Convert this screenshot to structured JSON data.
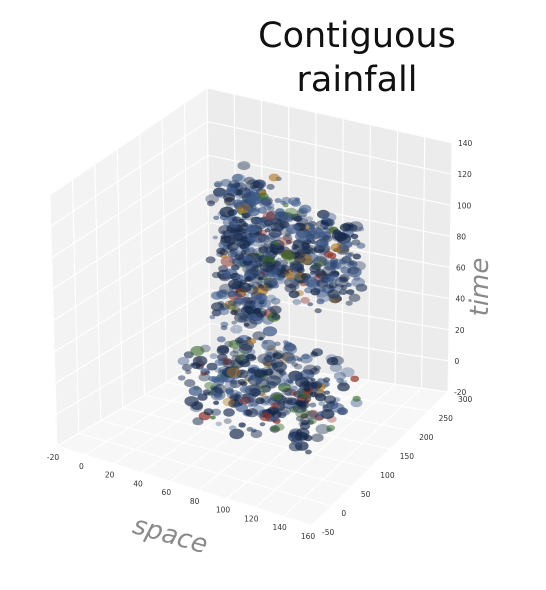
{
  "title": {
    "line1": "Contiguous",
    "line2": "rainfall"
  },
  "chart_data": {
    "type": "scatter",
    "projection": "3d",
    "title": "Contiguous rainfall",
    "xlabel": "space",
    "ylabel": "",
    "zlabel": "time",
    "xlim": [
      -20,
      160
    ],
    "ylim": [
      -50,
      300
    ],
    "zlim": [
      -20,
      140
    ],
    "x_ticks": [
      "-20",
      "0",
      "20",
      "40",
      "60",
      "80",
      "100",
      "120",
      "140",
      "160"
    ],
    "y_ticks": [
      "-50",
      "0",
      "50",
      "100",
      "150",
      "200",
      "250",
      "300"
    ],
    "z_ticks": [
      "-20",
      "0",
      "20",
      "40",
      "60",
      "80",
      "100",
      "120",
      "140"
    ],
    "grid": true,
    "colors": {
      "pane_back": "#ececec",
      "pane_side": "#f3f3f3",
      "pane_floor": "#f7f7f7",
      "grid": "#ffffff",
      "cluster_outer": "#3e5a8a",
      "cluster_core": "#16284a",
      "accents": [
        "#8b2c23",
        "#3b6b2e",
        "#b07a2a"
      ]
    },
    "clusters": [
      {
        "name": "",
        "x_range": [
          20,
          45
        ],
        "y_range": [
          180,
          270
        ],
        "z_range": [
          30,
          120
        ],
        "count": 340
      },
      {
        "name": "",
        "x_range": [
          45,
          100
        ],
        "y_range": [
          200,
          280
        ],
        "z_range": [
          55,
          105
        ],
        "count": 260
      },
      {
        "name": "",
        "x_range": [
          30,
          120
        ],
        "y_range": [
          60,
          200
        ],
        "z_range": [
          -5,
          35
        ],
        "count": 360
      }
    ]
  }
}
